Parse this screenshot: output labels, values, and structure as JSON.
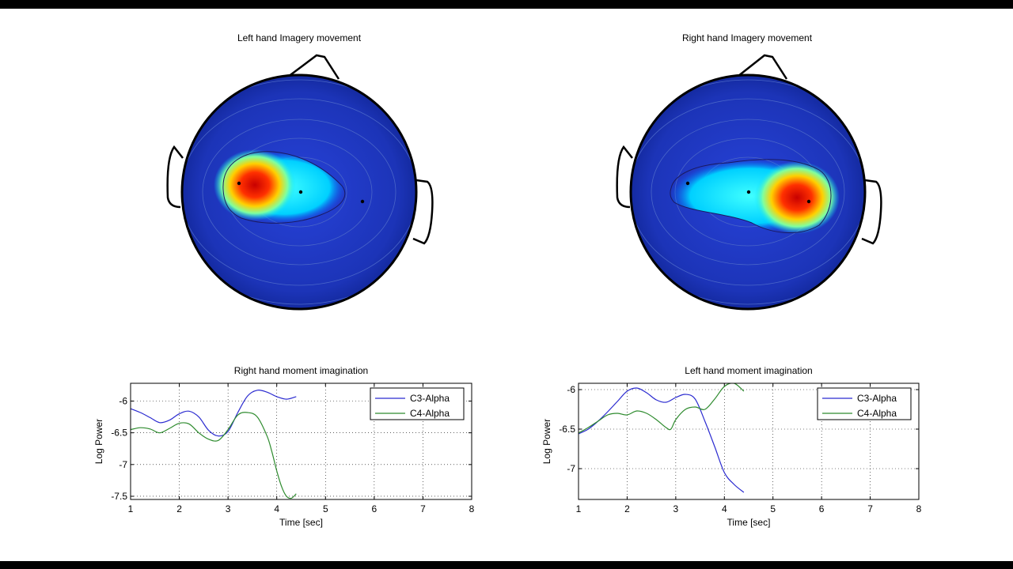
{
  "colors": {
    "c3": "#2b2bd0",
    "c4": "#2e8b2e",
    "scalp_base": "#1a2fb0",
    "outline": "#000000"
  },
  "topo_maps": [
    {
      "title": "Left hand Imagery movement",
      "hotspot": "left-hemisphere",
      "electrodes": [
        "C3",
        "Cz",
        "C4"
      ]
    },
    {
      "title": "Right hand Imagery movement",
      "hotspot": "right-hemisphere",
      "electrodes": [
        "C3",
        "Cz",
        "C4"
      ]
    }
  ],
  "chart_data": [
    {
      "type": "line",
      "title": "Right hand moment imagination",
      "xlabel": "Time [sec]",
      "ylabel": "Log Power",
      "xlim": [
        1,
        8
      ],
      "ylim": [
        -7.55,
        -5.72
      ],
      "xticks": [
        "1",
        "2",
        "3",
        "4",
        "5",
        "6",
        "7",
        "8"
      ],
      "yticks": [
        "-6",
        "-6.5",
        "-7",
        "-7.5"
      ],
      "ytick_values": [
        -6,
        -6.5,
        -7,
        -7.5
      ],
      "grid": true,
      "legend": "top-right",
      "series": [
        {
          "name": "C3-Alpha",
          "x": [
            1.0,
            1.2,
            1.4,
            1.6,
            1.8,
            2.0,
            2.2,
            2.4,
            2.6,
            2.8,
            3.0,
            3.2,
            3.4,
            3.6,
            3.8,
            4.0,
            4.2,
            4.4
          ],
          "y": [
            -6.12,
            -6.18,
            -6.26,
            -6.34,
            -6.3,
            -6.2,
            -6.16,
            -6.25,
            -6.46,
            -6.55,
            -6.48,
            -6.18,
            -5.92,
            -5.83,
            -5.86,
            -5.93,
            -5.97,
            -5.93
          ]
        },
        {
          "name": "C4-Alpha",
          "x": [
            1.0,
            1.2,
            1.4,
            1.6,
            1.8,
            2.0,
            2.2,
            2.4,
            2.6,
            2.8,
            3.0,
            3.2,
            3.4,
            3.6,
            3.8,
            3.9,
            4.0,
            4.1,
            4.2,
            4.3,
            4.4
          ],
          "y": [
            -6.45,
            -6.42,
            -6.44,
            -6.5,
            -6.43,
            -6.35,
            -6.36,
            -6.5,
            -6.6,
            -6.62,
            -6.45,
            -6.22,
            -6.18,
            -6.25,
            -6.55,
            -6.8,
            -7.1,
            -7.35,
            -7.5,
            -7.53,
            -7.46
          ]
        }
      ]
    },
    {
      "type": "line",
      "title": "Left hand moment imagination",
      "xlabel": "Time [sec]",
      "ylabel": "Log Power",
      "xlim": [
        1,
        8
      ],
      "ylim": [
        -7.39,
        -5.92
      ],
      "xticks": [
        "1",
        "2",
        "3",
        "4",
        "5",
        "6",
        "7",
        "8"
      ],
      "yticks": [
        "-6",
        "-6.5",
        "-7"
      ],
      "ytick_values": [
        -6,
        -6.5,
        -7
      ],
      "grid": true,
      "legend": "top-right",
      "series": [
        {
          "name": "C3-Alpha",
          "x": [
            1.0,
            1.2,
            1.4,
            1.6,
            1.8,
            2.0,
            2.2,
            2.4,
            2.6,
            2.8,
            3.0,
            3.2,
            3.4,
            3.6,
            3.8,
            4.0,
            4.2,
            4.4
          ],
          "y": [
            -6.56,
            -6.5,
            -6.4,
            -6.28,
            -6.15,
            -6.02,
            -5.98,
            -6.04,
            -6.13,
            -6.16,
            -6.1,
            -6.06,
            -6.12,
            -6.4,
            -6.72,
            -7.05,
            -7.2,
            -7.3
          ]
        },
        {
          "name": "C4-Alpha",
          "x": [
            1.0,
            1.2,
            1.4,
            1.6,
            1.8,
            2.0,
            2.2,
            2.4,
            2.6,
            2.8,
            2.9,
            3.0,
            3.2,
            3.4,
            3.6,
            3.8,
            4.0,
            4.2,
            4.4
          ],
          "y": [
            -6.55,
            -6.48,
            -6.4,
            -6.32,
            -6.3,
            -6.32,
            -6.27,
            -6.3,
            -6.38,
            -6.48,
            -6.5,
            -6.38,
            -6.25,
            -6.22,
            -6.25,
            -6.12,
            -5.96,
            -5.92,
            -6.02
          ]
        }
      ]
    }
  ]
}
